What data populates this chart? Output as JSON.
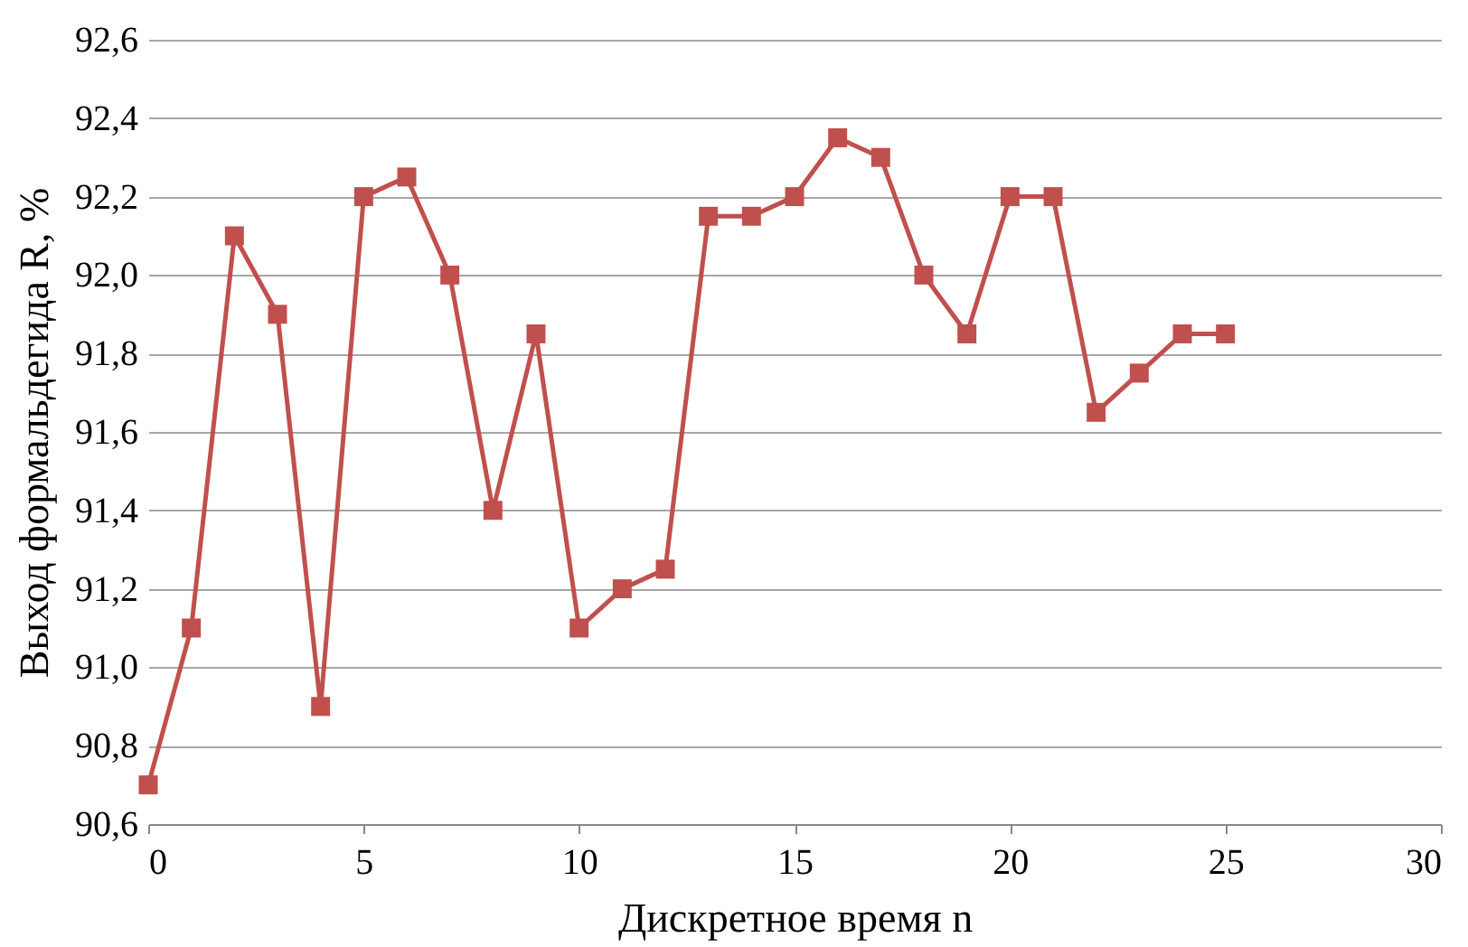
{
  "chart_data": {
    "type": "line",
    "xlabel": "Дискретное время n",
    "ylabel": "Выход формальдегида R, %",
    "x": [
      0,
      1,
      2,
      3,
      4,
      5,
      6,
      7,
      8,
      9,
      10,
      11,
      12,
      13,
      14,
      15,
      16,
      17,
      18,
      19,
      20,
      21,
      22,
      23,
      24,
      25
    ],
    "series": [
      {
        "color": "#c0504d",
        "values": [
          90.7,
          91.1,
          92.1,
          91.9,
          90.9,
          92.2,
          92.25,
          92.0,
          91.4,
          91.85,
          91.1,
          91.2,
          91.25,
          92.15,
          92.15,
          92.2,
          92.35,
          92.3,
          92.0,
          91.85,
          92.2,
          92.2,
          91.65,
          91.75,
          91.85,
          91.85
        ]
      }
    ],
    "xlim": [
      0,
      30
    ],
    "xticks": [
      0,
      5,
      10,
      15,
      20,
      25,
      30
    ],
    "ylim": [
      90.6,
      92.6
    ],
    "yticks": [
      {
        "value": 90.6,
        "label": "90,6"
      },
      {
        "value": 90.8,
        "label": "90,8"
      },
      {
        "value": 91.0,
        "label": "91,0"
      },
      {
        "value": 91.2,
        "label": "91,2"
      },
      {
        "value": 91.4,
        "label": "91,4"
      },
      {
        "value": 91.6,
        "label": "91,6"
      },
      {
        "value": 91.8,
        "label": "91,8"
      },
      {
        "value": 92.0,
        "label": "92,0"
      },
      {
        "value": 92.2,
        "label": "92,2"
      },
      {
        "value": 92.4,
        "label": "92,4"
      },
      {
        "value": 92.6,
        "label": "92,6"
      }
    ],
    "grid": "y",
    "marker": "square",
    "line_style": "solid"
  }
}
